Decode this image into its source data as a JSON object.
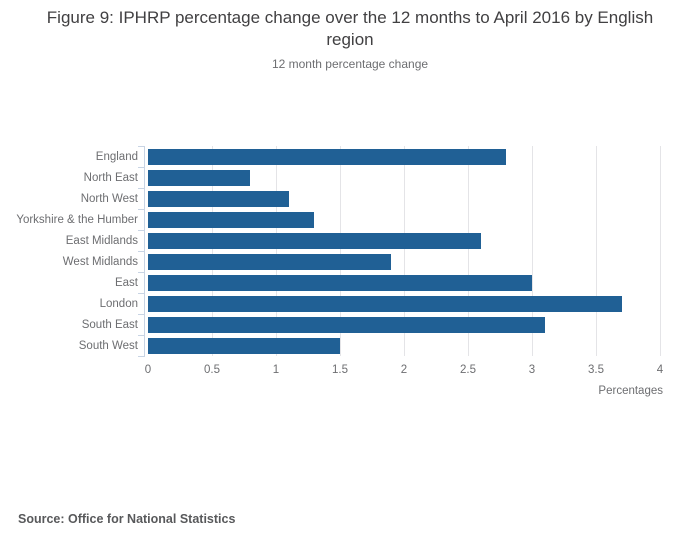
{
  "chart_data": {
    "type": "bar",
    "orientation": "horizontal",
    "title": "Figure 9: IPHRP percentage change over the 12 months to April 2016 by English region",
    "subtitle": "12 month percentage change",
    "categories": [
      "England",
      "North East",
      "North West",
      "Yorkshire & the Humber",
      "East Midlands",
      "West Midlands",
      "East",
      "London",
      "South East",
      "South West"
    ],
    "values": [
      2.8,
      0.8,
      1.1,
      1.3,
      2.6,
      1.9,
      3.0,
      3.7,
      3.1,
      1.5
    ],
    "xlabel": "Percentages",
    "ylabel": "",
    "xlim": [
      0,
      4
    ],
    "xticks": [
      0,
      0.5,
      1,
      1.5,
      2,
      2.5,
      3,
      3.5,
      4
    ],
    "grid": true,
    "legend": "none"
  },
  "footer": {
    "source": "Source: Office for National Statistics"
  },
  "colors": {
    "bar": "#206095",
    "axis": "#c8d4e4",
    "grid": "#e4e4e7",
    "title_text": "#414042",
    "muted_text": "#6d6e71",
    "source_text": "#58595b"
  }
}
